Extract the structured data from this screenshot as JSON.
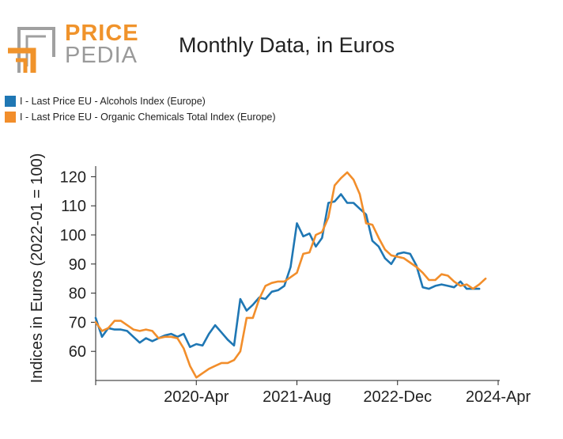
{
  "logo": {
    "word1": "PRICE",
    "word2": "PEDIA",
    "icon": "pricepedia-logo-icon",
    "orange": "#f0932b",
    "gray": "#a0a0a0"
  },
  "chart_data": {
    "type": "line",
    "title": "Monthly Data, in Euros",
    "xlabel": "",
    "ylabel": "Indices in Euros (2022-01 = 100)",
    "ylim": [
      50,
      125
    ],
    "y_ticks": [
      60,
      70,
      80,
      90,
      100,
      110,
      120
    ],
    "x_ticks": [
      {
        "index": 0,
        "label": ""
      },
      {
        "index": 16,
        "label": "2020-Apr"
      },
      {
        "index": 32,
        "label": "2021-Aug"
      },
      {
        "index": 48,
        "label": "2022-Dec"
      },
      {
        "index": 64,
        "label": "2024-Apr"
      }
    ],
    "legend_position": "top-left",
    "series": [
      {
        "name": "I - Last Price EU - Alcohols Index (Europe)",
        "color": "#1f77b4",
        "values": [
          71.5,
          65,
          68,
          67.5,
          67.5,
          67,
          65,
          63,
          64.5,
          63.5,
          64.5,
          65.5,
          66,
          65,
          66,
          61.5,
          62.5,
          62,
          66,
          69,
          66.5,
          64,
          62,
          78,
          74,
          76,
          78.5,
          78,
          80.5,
          81,
          82.5,
          89,
          104,
          99.5,
          100.5,
          96,
          99,
          111,
          111.5,
          114,
          111,
          111,
          109,
          107,
          98,
          96,
          92,
          90,
          93.5,
          94,
          93.5,
          89.5,
          82,
          81.5,
          82.5,
          83,
          82.5,
          82,
          84,
          81.5,
          81.5,
          81.5
        ]
      },
      {
        "name": "I - Last Price EU - Organic Chemicals Total Index (Europe)",
        "color": "#f28e2b",
        "values": [
          70,
          67,
          68,
          70.5,
          70.5,
          69,
          67.5,
          67,
          67.5,
          67,
          64.5,
          65,
          65,
          64.5,
          61,
          55,
          51,
          52.5,
          54,
          55,
          56,
          56,
          57,
          60,
          71.5,
          71.5,
          78,
          82.5,
          83.5,
          84,
          84,
          85.5,
          87,
          93.5,
          94,
          100,
          101,
          106,
          117,
          119.5,
          121.5,
          119,
          114,
          104,
          103.5,
          99,
          95,
          93,
          92.5,
          92,
          90.5,
          89,
          87,
          84.5,
          84.5,
          86.5,
          86,
          84,
          82.5,
          83,
          81.5,
          83,
          85
        ]
      }
    ]
  }
}
